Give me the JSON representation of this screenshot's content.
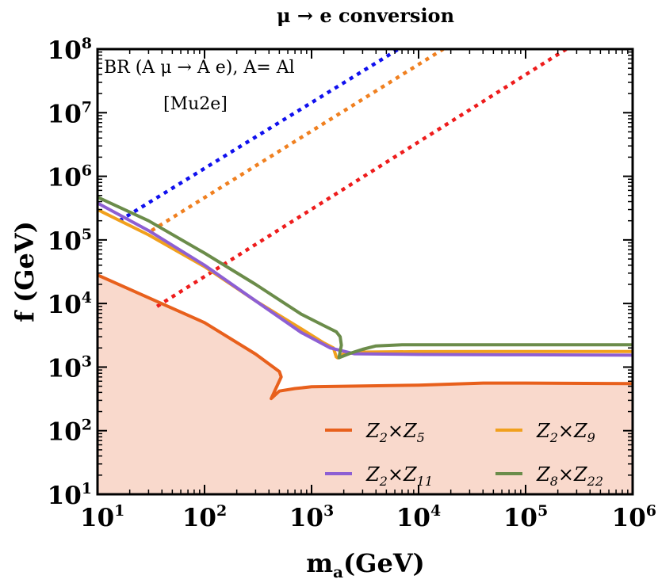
{
  "chart_data": {
    "type": "line",
    "title": "μ → e conversion",
    "xlabel": "m_a(GeV)",
    "ylabel": "f (GeV)",
    "xscale": "log",
    "yscale": "log",
    "xlim": [
      10,
      1000000
    ],
    "ylim": [
      10,
      100000000
    ],
    "x_ticks": [
      {
        "base": "10",
        "exp": "1",
        "value": 10
      },
      {
        "base": "10",
        "exp": "2",
        "value": 100
      },
      {
        "base": "10",
        "exp": "3",
        "value": 1000
      },
      {
        "base": "10",
        "exp": "4",
        "value": 10000
      },
      {
        "base": "10",
        "exp": "5",
        "value": 100000
      },
      {
        "base": "10",
        "exp": "6",
        "value": 1000000
      }
    ],
    "y_ticks": [
      {
        "base": "10",
        "exp": "1",
        "value": 10
      },
      {
        "base": "10",
        "exp": "2",
        "value": 100
      },
      {
        "base": "10",
        "exp": "3",
        "value": 1000
      },
      {
        "base": "10",
        "exp": "4",
        "value": 10000
      },
      {
        "base": "10",
        "exp": "5",
        "value": 100000
      },
      {
        "base": "10",
        "exp": "6",
        "value": 1000000
      },
      {
        "base": "10",
        "exp": "7",
        "value": 10000000
      },
      {
        "base": "10",
        "exp": "8",
        "value": 100000000
      }
    ],
    "annotation_line1": "BR (A μ → A e), A= Al",
    "annotation_line2": "[Mu2e]",
    "excluded_region": {
      "color": "#f9d9cc",
      "bounded_by": "Z2×Z5"
    },
    "legend_position": "bottom-right",
    "series": [
      {
        "name": "Z2×Z5",
        "base_a": "Z",
        "sub_a": "2",
        "base_b": "Z",
        "sub_b": "5",
        "color": "#e8601c",
        "points": [
          [
            10,
            28000
          ],
          [
            100,
            5000
          ],
          [
            300,
            1600
          ],
          [
            500,
            850
          ],
          [
            520,
            700
          ],
          [
            420,
            320
          ],
          [
            500,
            420
          ],
          [
            700,
            460
          ],
          [
            1000,
            490
          ],
          [
            10000,
            520
          ],
          [
            40000,
            560
          ],
          [
            100000,
            560
          ],
          [
            1000000,
            550
          ]
        ]
      },
      {
        "name": "Z2×Z9",
        "base_a": "Z",
        "sub_a": "2",
        "base_b": "Z",
        "sub_b": "9",
        "color": "#f1a01d",
        "points": [
          [
            10,
            300000
          ],
          [
            30,
            120000
          ],
          [
            100,
            38000
          ],
          [
            300,
            11000
          ],
          [
            800,
            4000
          ],
          [
            1300,
            2400
          ],
          [
            1600,
            2000
          ],
          [
            1700,
            1450
          ],
          [
            1750,
            1400
          ],
          [
            2000,
            1620
          ],
          [
            3000,
            1720
          ],
          [
            10000,
            1750
          ],
          [
            100000,
            1760
          ],
          [
            1000000,
            1760
          ]
        ]
      },
      {
        "name": "Z2×Z11",
        "base_a": "Z",
        "sub_a": "2",
        "base_b": "Z",
        "sub_b": "11",
        "color": "#8d5fd3",
        "points": [
          [
            10,
            380000
          ],
          [
            30,
            140000
          ],
          [
            100,
            40000
          ],
          [
            300,
            11000
          ],
          [
            800,
            3500
          ],
          [
            1500,
            2000
          ],
          [
            2500,
            1620
          ],
          [
            10000,
            1580
          ],
          [
            100000,
            1560
          ],
          [
            1000000,
            1540
          ]
        ]
      },
      {
        "name": "Z8×Z22",
        "base_a": "Z",
        "sub_a": "8",
        "base_b": "Z",
        "sub_b": "22",
        "color": "#6b8c4a",
        "points": [
          [
            10,
            470000
          ],
          [
            30,
            200000
          ],
          [
            100,
            62000
          ],
          [
            300,
            20000
          ],
          [
            800,
            6800
          ],
          [
            1300,
            4500
          ],
          [
            1700,
            3600
          ],
          [
            1850,
            3000
          ],
          [
            1900,
            2200
          ],
          [
            1800,
            1400
          ],
          [
            2300,
            1650
          ],
          [
            3000,
            1900
          ],
          [
            4000,
            2150
          ],
          [
            7000,
            2250
          ],
          [
            100000,
            2250
          ],
          [
            1000000,
            2250
          ]
        ]
      }
    ],
    "dotted_lines": [
      {
        "color": "#1010ee",
        "points": [
          [
            16,
            200000
          ],
          [
            6500,
            100000000
          ]
        ]
      },
      {
        "color": "#f08020",
        "points": [
          [
            32,
            140000
          ],
          [
            17000,
            100000000
          ]
        ]
      },
      {
        "color": "#ee1c1c",
        "points": [
          [
            36,
            9000
          ],
          [
            240000,
            100000000
          ]
        ]
      }
    ]
  }
}
